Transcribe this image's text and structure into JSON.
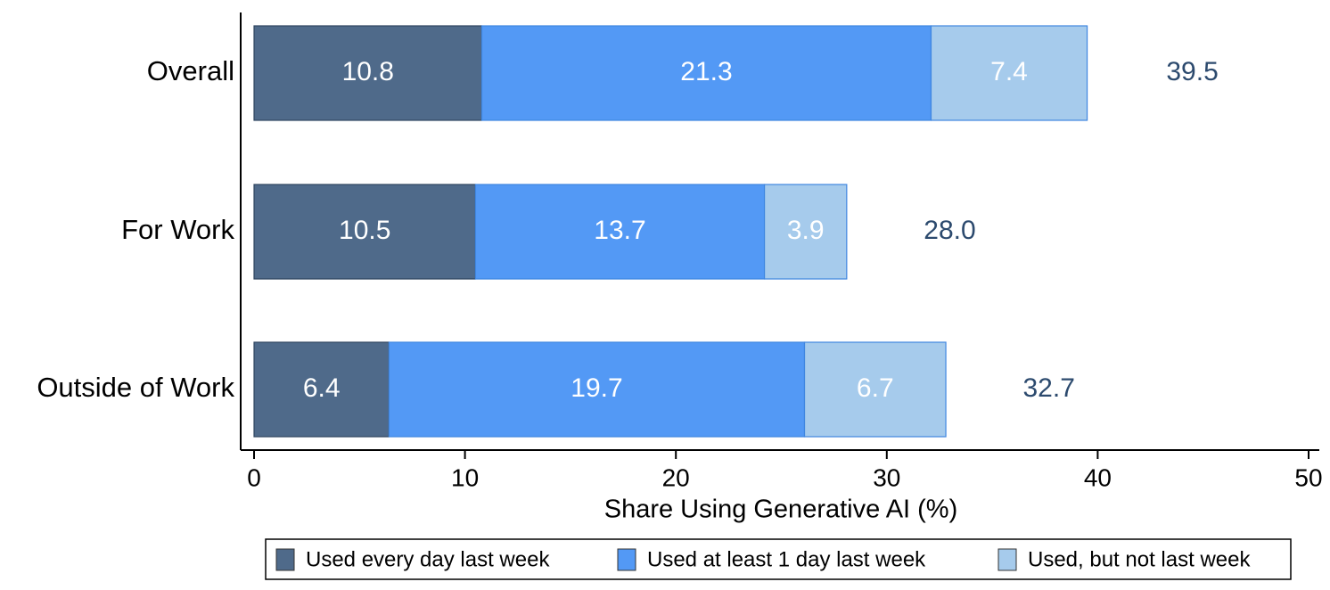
{
  "chart_data": {
    "type": "stacked-bar-horizontal",
    "x_label": "Share Using Generative AI (%)",
    "categories": [
      "Overall",
      "For Work",
      "Outside of Work"
    ],
    "series": [
      {
        "name": "Used every day last week",
        "color": "#4f6a8a",
        "values": [
          10.8,
          10.5,
          6.4
        ]
      },
      {
        "name": "Used at least 1 day last week",
        "color": "#5399f5",
        "values": [
          21.3,
          13.7,
          19.7
        ]
      },
      {
        "name": "Used, but not last week",
        "color": "#a6cbec",
        "values": [
          7.4,
          3.9,
          6.7
        ]
      }
    ],
    "totals": [
      39.5,
      28.0,
      32.7
    ],
    "total_labels": [
      "39.5",
      "28.0",
      "32.7"
    ],
    "xlim": [
      0,
      50
    ],
    "xticks": [
      0,
      10,
      20,
      30,
      40,
      50
    ],
    "legend": "bottom"
  }
}
